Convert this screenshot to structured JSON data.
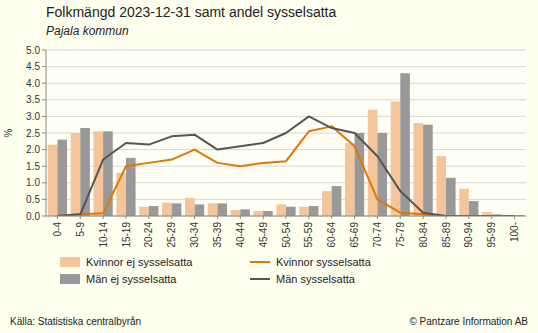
{
  "chart_data": {
    "type": "bar",
    "title": "Folkmängd 2023-12-31 samt andel sysselsatta",
    "subtitle": "Pajala kommun",
    "y_label": "%",
    "annotations": [
      "Källa: Statistiska centralbyrån",
      "© Pantzare Information AB"
    ],
    "categories": [
      "0-4",
      "5-9",
      "10-14",
      "15-19",
      "20-24",
      "25-29",
      "30-34",
      "35-39",
      "40-44",
      "45-49",
      "50-54",
      "55-59",
      "60-64",
      "65-69",
      "70-74",
      "75-79",
      "80-84",
      "85-89",
      "90-94",
      "95-99",
      "100-"
    ],
    "series": [
      {
        "name": "Kvinnor ej sysselsatta",
        "type": "bar",
        "color": "#f5c59a",
        "values": [
          2.15,
          2.5,
          2.55,
          1.3,
          0.28,
          0.4,
          0.55,
          0.38,
          0.18,
          0.15,
          0.35,
          0.28,
          0.75,
          2.2,
          3.2,
          3.45,
          2.8,
          1.8,
          0.82,
          0.12,
          0.03
        ]
      },
      {
        "name": "Män ej sysselsatta",
        "type": "bar",
        "color": "#999999",
        "values": [
          2.3,
          2.65,
          2.55,
          1.75,
          0.3,
          0.38,
          0.35,
          0.38,
          0.2,
          0.15,
          0.28,
          0.3,
          0.9,
          2.5,
          2.5,
          4.3,
          2.75,
          1.15,
          0.45,
          0.05,
          0.03
        ]
      },
      {
        "name": "Kvinnor sysselsatta",
        "type": "line",
        "color": "#e07800",
        "values": [
          0.0,
          0.05,
          0.08,
          1.5,
          1.6,
          1.7,
          2.0,
          1.6,
          1.5,
          1.6,
          1.65,
          2.55,
          2.7,
          2.1,
          0.5,
          0.1,
          0.05,
          0.0,
          0.0,
          0.0,
          0.0
        ]
      },
      {
        "name": "Män sysselsatta",
        "type": "line",
        "color": "#555555",
        "values": [
          0.0,
          0.05,
          1.7,
          2.2,
          2.15,
          2.4,
          2.45,
          2.0,
          2.1,
          2.2,
          2.5,
          3.0,
          2.65,
          2.5,
          1.8,
          0.75,
          0.1,
          0.0,
          0.0,
          0.0,
          0.0
        ]
      }
    ],
    "ylim": [
      0,
      5.0
    ],
    "yticks": [
      {
        "value": 0,
        "label": "0.0"
      },
      0.5,
      {
        "value": 1,
        "label": "1.0"
      },
      1.5,
      {
        "value": 2,
        "label": "2.0"
      },
      2.5,
      {
        "value": 3,
        "label": "3.0"
      },
      3.5,
      {
        "value": 4,
        "label": "4.0"
      },
      4.5,
      {
        "value": 5,
        "label": "5.0"
      }
    ],
    "grid": true,
    "legend": "bottom"
  }
}
